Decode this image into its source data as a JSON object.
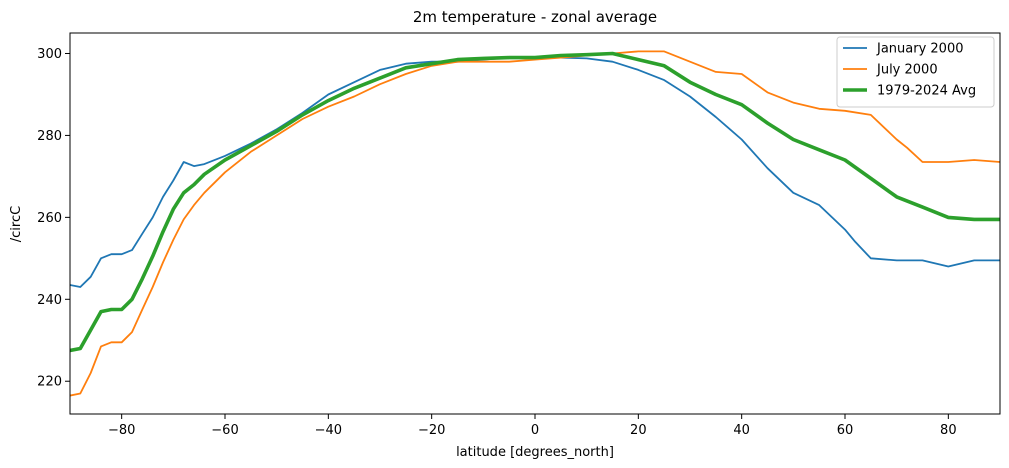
{
  "chart_data": {
    "type": "line",
    "title": "2m temperature - zonal average",
    "xlabel": "latitude [degrees_north]",
    "ylabel": "/circC",
    "xlim": [
      -90,
      90
    ],
    "ylim": [
      212,
      305
    ],
    "x_ticks": [
      -80,
      -60,
      -40,
      -20,
      0,
      20,
      40,
      60,
      80
    ],
    "y_ticks": [
      220,
      240,
      260,
      280,
      300
    ],
    "grid": false,
    "legend_position": "top-right",
    "series": [
      {
        "name": "January 2000",
        "color": "#1f77b4",
        "line_width": 1.8,
        "x": [
          -90,
          -88,
          -86,
          -84,
          -82,
          -80,
          -78,
          -76,
          -74,
          -72,
          -70,
          -68,
          -66,
          -64,
          -60,
          -55,
          -50,
          -45,
          -40,
          -35,
          -30,
          -25,
          -20,
          -15,
          -10,
          -5,
          0,
          5,
          10,
          15,
          20,
          25,
          30,
          35,
          40,
          45,
          50,
          55,
          60,
          62,
          65,
          70,
          75,
          80,
          85,
          90
        ],
        "y": [
          243.5,
          243,
          245.5,
          250,
          251,
          251,
          252,
          256,
          260,
          265,
          269,
          273.5,
          272.5,
          273,
          275,
          278,
          281.5,
          285.5,
          290,
          293,
          296,
          297.5,
          298,
          298,
          298.5,
          299,
          299,
          299,
          298.8,
          298,
          296,
          293.5,
          289.5,
          284.5,
          279,
          272,
          266,
          263,
          257,
          254,
          250,
          249.5,
          249.5,
          248,
          249.5,
          249.5
        ]
      },
      {
        "name": "July 2000",
        "color": "#ff7f0e",
        "line_width": 1.8,
        "x": [
          -90,
          -88,
          -86,
          -84,
          -82,
          -80,
          -78,
          -76,
          -74,
          -72,
          -70,
          -68,
          -66,
          -64,
          -60,
          -55,
          -50,
          -45,
          -40,
          -35,
          -30,
          -25,
          -20,
          -15,
          -10,
          -5,
          0,
          5,
          10,
          15,
          20,
          25,
          30,
          35,
          40,
          45,
          50,
          55,
          60,
          65,
          70,
          72,
          75,
          80,
          85,
          90
        ],
        "y": [
          216.5,
          217,
          222,
          228.5,
          229.5,
          229.5,
          232,
          237.5,
          243,
          249,
          254.5,
          259.5,
          263,
          266,
          271,
          276,
          280,
          284,
          287,
          289.5,
          292.5,
          295,
          297,
          298,
          298,
          298,
          298.5,
          299,
          299.5,
          300,
          300.5,
          300.5,
          298,
          295.5,
          295,
          290.5,
          288,
          286.5,
          286,
          285,
          279,
          277,
          273.5,
          273.5,
          274,
          273.5
        ]
      },
      {
        "name": "1979-2024 Avg",
        "color": "#2ca02c",
        "line_width": 3.6,
        "x": [
          -90,
          -88,
          -86,
          -84,
          -82,
          -80,
          -78,
          -76,
          -74,
          -72,
          -70,
          -68,
          -66,
          -64,
          -60,
          -55,
          -50,
          -45,
          -40,
          -35,
          -30,
          -25,
          -20,
          -15,
          -10,
          -5,
          0,
          5,
          10,
          15,
          20,
          25,
          30,
          35,
          40,
          45,
          50,
          55,
          60,
          65,
          70,
          75,
          80,
          85,
          90
        ],
        "y": [
          227.5,
          228,
          232.5,
          237,
          237.5,
          237.5,
          240,
          245,
          250.5,
          256.5,
          262,
          266,
          268,
          270.5,
          274,
          277.5,
          281,
          285,
          288.5,
          291.5,
          294,
          296.5,
          297.5,
          298.5,
          298.8,
          299,
          299,
          299.5,
          299.7,
          300,
          298.5,
          297,
          293,
          290,
          287.5,
          283,
          279,
          276.5,
          274,
          269.5,
          265,
          262.5,
          260,
          259.5,
          259.5
        ]
      }
    ]
  }
}
